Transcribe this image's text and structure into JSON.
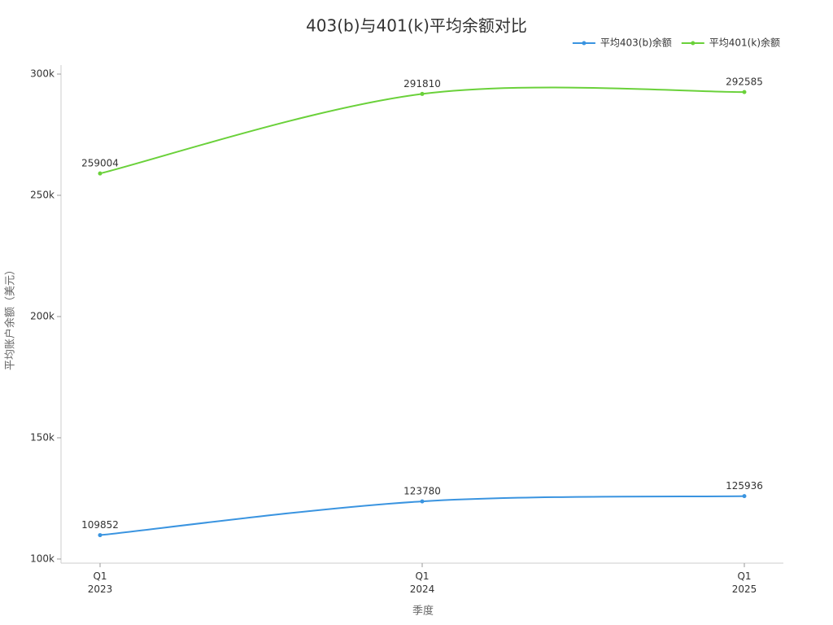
{
  "chart_data": {
    "type": "line",
    "title": "403(b)与401(k)平均余额对比",
    "x_label": "季度",
    "y_label": "平均账户余额（美元）",
    "categories": [
      "Q1\n2023",
      "Q1\n2024",
      "Q1\n2025"
    ],
    "series": [
      {
        "name": "平均403(b)余额",
        "color": "#3a94e0",
        "values": [
          109852,
          123780,
          125936
        ]
      },
      {
        "name": "平均401(k)余额",
        "color": "#6ad13a",
        "values": [
          259004,
          291810,
          292585
        ]
      }
    ],
    "ylim": [
      98300,
      303700
    ],
    "yticks": [
      {
        "value": 100000,
        "label": "100k"
      },
      {
        "value": 150000,
        "label": "150k"
      },
      {
        "value": 200000,
        "label": "200k"
      },
      {
        "value": 250000,
        "label": "250k"
      },
      {
        "value": 300000,
        "label": "300k"
      }
    ],
    "grid": false,
    "smooth": true,
    "legend": "top-right"
  }
}
